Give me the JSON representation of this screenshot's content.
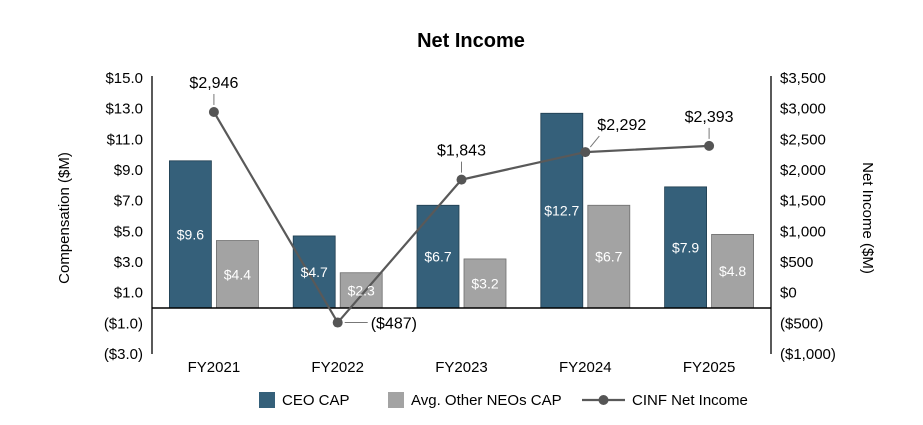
{
  "chart_data": {
    "type": "bar",
    "title": "Net Income",
    "categories": [
      "FY2021",
      "FY2022",
      "FY2023",
      "FY2024",
      "FY2025"
    ],
    "ylabel": "Compensation ($M)",
    "y2label": "Net Income ($M)",
    "ylim": [
      -3,
      15
    ],
    "y2lim": [
      -1000,
      3500
    ],
    "yticks": [
      "$15.0",
      "$13.0",
      "$11.0",
      "$9.0",
      "$7.0",
      "$5.0",
      "$3.0",
      "$1.0",
      "($1.0)",
      "($3.0)"
    ],
    "ytick_values": [
      15,
      13,
      11,
      9,
      7,
      5,
      3,
      1,
      -1,
      -3
    ],
    "y2ticks": [
      "$3,500",
      "$3,000",
      "$2,500",
      "$2,000",
      "$1,500",
      "$1,000",
      "$500",
      "$0",
      "($500)",
      "($1,000)"
    ],
    "y2tick_values": [
      3500,
      3000,
      2500,
      2000,
      1500,
      1000,
      500,
      0,
      -500,
      -1000
    ],
    "series": [
      {
        "name": "CEO CAP",
        "kind": "bar",
        "color": "#35607a",
        "values": [
          9.6,
          4.7,
          6.7,
          12.7,
          7.9
        ],
        "labels": [
          "$9.6",
          "$4.7",
          "$6.7",
          "$12.7",
          "$7.9"
        ]
      },
      {
        "name": "Avg. Other NEOs CAP",
        "kind": "bar",
        "color": "#a3a3a3",
        "values": [
          4.4,
          2.3,
          3.2,
          6.7,
          4.8
        ],
        "labels": [
          "$4.4",
          "$2.3",
          "$3.2",
          "$6.7",
          "$4.8"
        ]
      },
      {
        "name": "CINF Net Income",
        "kind": "line",
        "axis": "secondary",
        "color": "#595959",
        "values": [
          2946,
          -487,
          1843,
          2292,
          2393
        ],
        "labels": [
          "$2,946",
          "($487)",
          "$1,843",
          "$2,292",
          "$2,393"
        ]
      }
    ],
    "legend": "bottom"
  }
}
